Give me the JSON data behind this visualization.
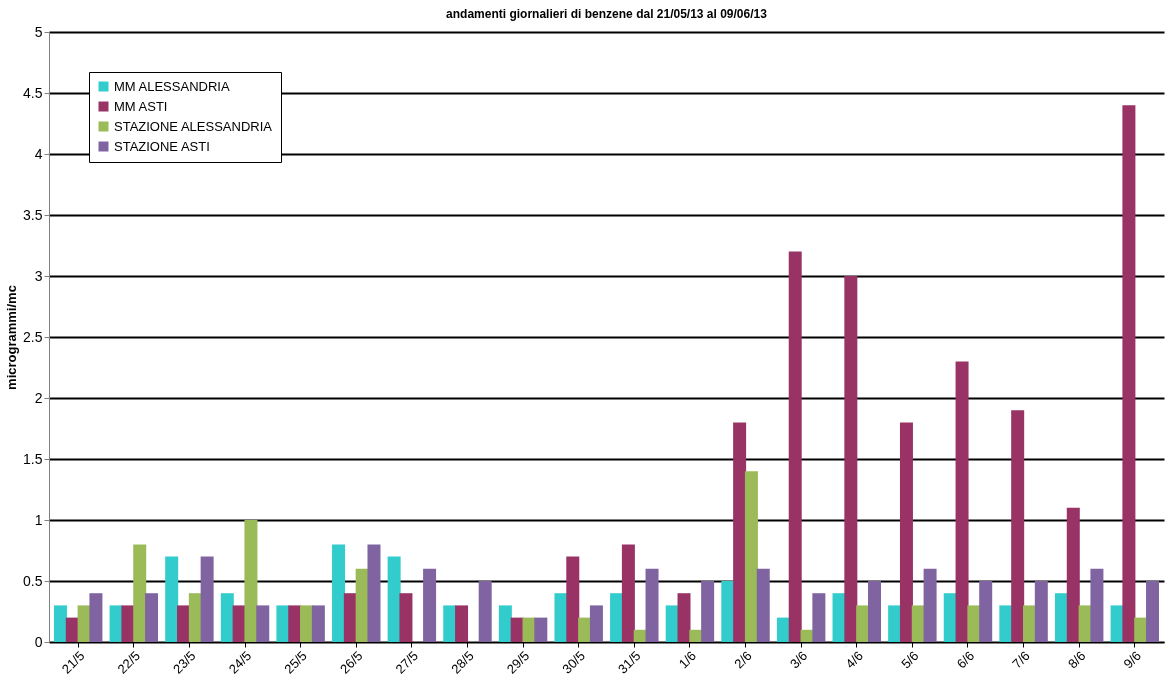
{
  "chart_data": {
    "type": "bar",
    "title": "andamenti giornalieri di benzene dal 21/05/13 al 09/06/13",
    "ylabel": "microgrammi/mc",
    "categories": [
      "21/5",
      "22/5",
      "23/5",
      "24/5",
      "25/5",
      "26/5",
      "27/5",
      "28/5",
      "29/5",
      "30/5",
      "31/5",
      "1/6",
      "2/6",
      "3/6",
      "4/6",
      "5/6",
      "6/6",
      "7/6",
      "8/6",
      "9/6"
    ],
    "series": [
      {
        "name": "MM ALESSANDRIA",
        "color": "#33cccc",
        "values": [
          0.3,
          0.3,
          0.7,
          0.4,
          0.3,
          0.8,
          0.7,
          0.3,
          0.3,
          0.4,
          0.4,
          0.3,
          0.5,
          0.2,
          0.4,
          0.3,
          0.4,
          0.3,
          0.4,
          0.3
        ]
      },
      {
        "name": "MM ASTI",
        "color": "#993366",
        "values": [
          0.2,
          0.3,
          0.3,
          0.3,
          0.3,
          0.4,
          0.4,
          0.3,
          0.2,
          0.7,
          0.8,
          0.4,
          1.8,
          3.2,
          3.0,
          1.8,
          2.3,
          1.9,
          1.1,
          4.4
        ]
      },
      {
        "name": "STAZIONE ALESSANDRIA",
        "color": "#9bbb59",
        "values": [
          0.3,
          0.8,
          0.4,
          1.0,
          0.3,
          0.6,
          null,
          null,
          0.2,
          0.2,
          0.1,
          0.1,
          1.4,
          0.1,
          0.3,
          0.3,
          0.3,
          0.3,
          0.3,
          0.2
        ]
      },
      {
        "name": "STAZIONE ASTI",
        "color": "#8064a2",
        "values": [
          0.4,
          0.4,
          0.7,
          0.3,
          0.3,
          0.8,
          0.6,
          0.5,
          0.2,
          0.3,
          0.6,
          0.5,
          0.6,
          0.4,
          0.5,
          0.6,
          0.5,
          0.5,
          0.6,
          0.5
        ]
      }
    ],
    "ylim": [
      0,
      5
    ],
    "yticks": [
      0,
      0.5,
      1,
      1.5,
      2,
      2.5,
      3,
      3.5,
      4,
      4.5,
      5
    ],
    "grid": "y",
    "legend": "top left"
  }
}
